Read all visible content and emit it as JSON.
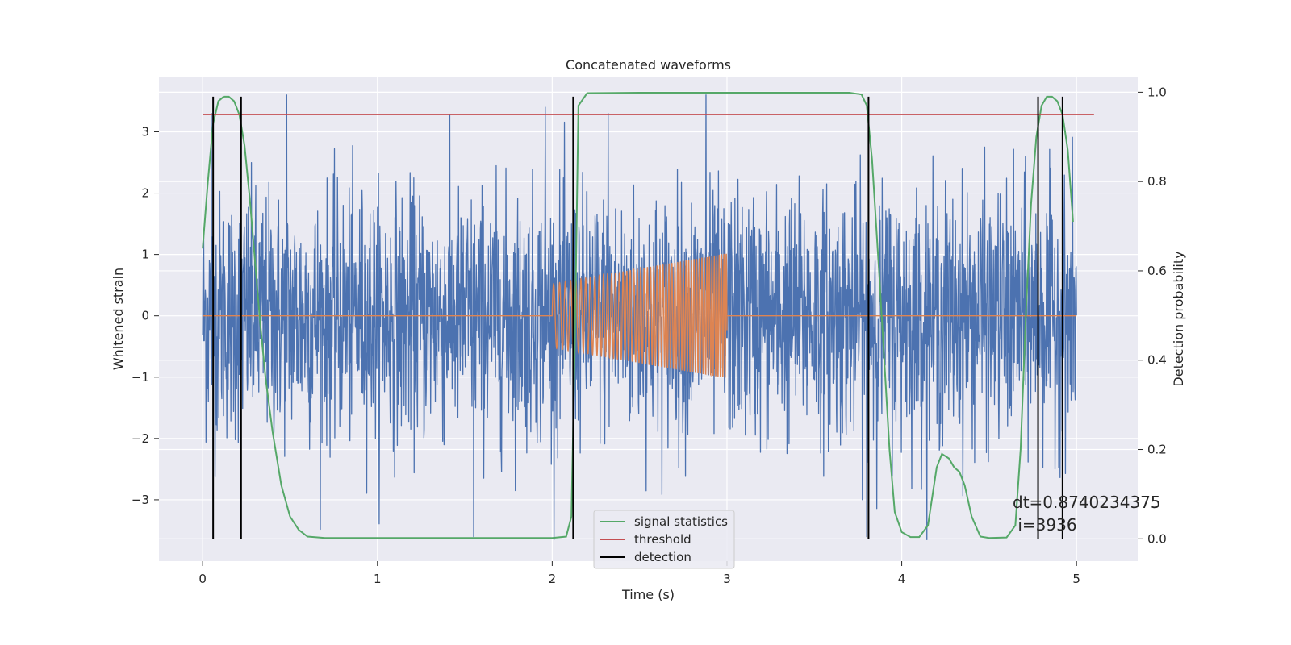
{
  "chart_data": {
    "type": "line",
    "title": "Concatenated waveforms",
    "xlabel": "Time (s)",
    "ylabel": "Whitened strain",
    "ylabel_right": "Detection probability",
    "xlim": [
      -0.25,
      5.35
    ],
    "ylim": [
      -4.0,
      3.9
    ],
    "ylim_right": [
      -0.05,
      1.035
    ],
    "xticks": [
      0,
      1,
      2,
      3,
      4,
      5
    ],
    "xtick_labels": [
      "0",
      "1",
      "2",
      "3",
      "4",
      "5"
    ],
    "yticks": [
      -3,
      -2,
      -1,
      0,
      1,
      2,
      3
    ],
    "ytick_labels": [
      "−3",
      "−2",
      "−1",
      "0",
      "1",
      "2",
      "3"
    ],
    "yticks_right": [
      0.0,
      0.2,
      0.4,
      0.6,
      0.8,
      1.0
    ],
    "ytick_labels_right": [
      "0.0",
      "0.2",
      "0.4",
      "0.6",
      "0.8",
      "1.0"
    ],
    "grid": true,
    "legend_placement": "lower center",
    "colors": {
      "background": "#eaeaf2",
      "strain": "#4c72b0",
      "injected_signal": "#dd8452",
      "signal_statistics": "#55a868",
      "threshold": "#c44e52",
      "detection": "#000000"
    },
    "series": [
      {
        "name": "",
        "kind": "whitened-strain-noise",
        "axis": "left",
        "x_range": [
          0,
          5
        ],
        "envelope_typical": [
          -2.2,
          2.2
        ],
        "notable_spikes": [
          {
            "x": 1.55,
            "y": -3.6
          },
          {
            "x": 0.48,
            "y": 3.6
          },
          {
            "x": 2.88,
            "y": 3.6
          },
          {
            "x": 1.96,
            "y": 3.4
          },
          {
            "x": 2.32,
            "y": 3.3
          },
          {
            "x": 0.05,
            "y": 3.3
          },
          {
            "x": 3.8,
            "y": -3.6
          }
        ]
      },
      {
        "name": "",
        "kind": "injected-chirp",
        "axis": "left",
        "x_range": [
          2.0,
          3.0
        ],
        "amplitude_start": 0.52,
        "amplitude_end": 1.02,
        "frequency_start_hz": 28,
        "frequency_end_hz": 75,
        "baseline": 0
      },
      {
        "name": "signal statistics",
        "axis": "right",
        "x": [
          0.0,
          0.03,
          0.06,
          0.09,
          0.12,
          0.15,
          0.18,
          0.21,
          0.24,
          0.27,
          0.3,
          0.33,
          0.36,
          0.4,
          0.45,
          0.5,
          0.55,
          0.6,
          0.7,
          1.0,
          1.5,
          2.0,
          2.08,
          2.11,
          2.13,
          2.15,
          2.2,
          2.5,
          3.0,
          3.5,
          3.7,
          3.77,
          3.8,
          3.83,
          3.87,
          3.9,
          3.93,
          3.96,
          4.0,
          4.05,
          4.1,
          4.15,
          4.2,
          4.23,
          4.27,
          4.3,
          4.33,
          4.36,
          4.4,
          4.45,
          4.5,
          4.6,
          4.65,
          4.68,
          4.71,
          4.74,
          4.77,
          4.8,
          4.83,
          4.86,
          4.89,
          4.92,
          4.95,
          4.98
        ],
        "y": [
          0.65,
          0.8,
          0.93,
          0.98,
          0.99,
          0.99,
          0.98,
          0.95,
          0.88,
          0.76,
          0.62,
          0.48,
          0.36,
          0.24,
          0.12,
          0.05,
          0.02,
          0.005,
          0.002,
          0.002,
          0.002,
          0.002,
          0.005,
          0.05,
          0.45,
          0.97,
          0.998,
          0.999,
          0.999,
          0.999,
          0.999,
          0.995,
          0.97,
          0.85,
          0.6,
          0.4,
          0.2,
          0.06,
          0.015,
          0.004,
          0.004,
          0.03,
          0.16,
          0.19,
          0.18,
          0.16,
          0.15,
          0.12,
          0.05,
          0.005,
          0.002,
          0.003,
          0.03,
          0.2,
          0.5,
          0.75,
          0.9,
          0.97,
          0.99,
          0.99,
          0.98,
          0.95,
          0.87,
          0.71
        ]
      },
      {
        "name": "threshold",
        "axis": "right",
        "x": [
          0.0,
          5.1
        ],
        "y": [
          0.95,
          0.95
        ]
      },
      {
        "name": "detection",
        "axis": "right",
        "vertical_lines_x": [
          0.06,
          0.22,
          2.12,
          3.81,
          4.78,
          4.92
        ],
        "y_range": [
          0.0,
          0.99
        ]
      }
    ],
    "legend": [
      "signal statistics",
      "threshold",
      "detection"
    ],
    "annotations": [
      "dt=0.8740234375",
      " i=3936"
    ]
  }
}
